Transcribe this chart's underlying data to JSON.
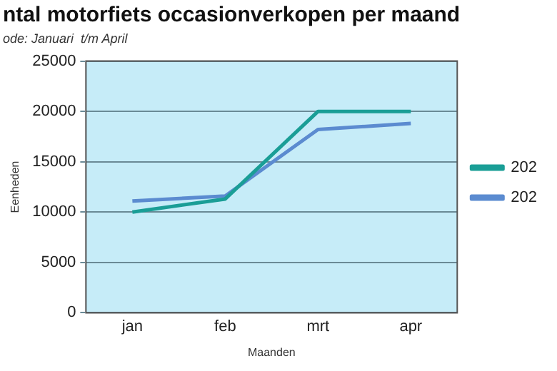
{
  "chart_data": {
    "type": "line",
    "title": "ntal motorfiets occasionverkopen per maand",
    "subtitle": "ode: Januari  t/m April",
    "xlabel": "Maanden",
    "ylabel": "Eenheden",
    "categories": [
      "jan",
      "feb",
      "mrt",
      "apr"
    ],
    "series": [
      {
        "name": "202",
        "color": "#1a9e96",
        "values": [
          10000,
          11300,
          20000,
          20000
        ]
      },
      {
        "name": "202",
        "color": "#5b8bd0",
        "values": [
          11100,
          11600,
          18200,
          18800
        ]
      }
    ],
    "ylim": [
      0,
      25000
    ],
    "yticks": [
      0,
      5000,
      10000,
      15000,
      20000,
      25000
    ],
    "grid": "y",
    "legend": "right",
    "marker": "none",
    "line_style": "solid"
  }
}
